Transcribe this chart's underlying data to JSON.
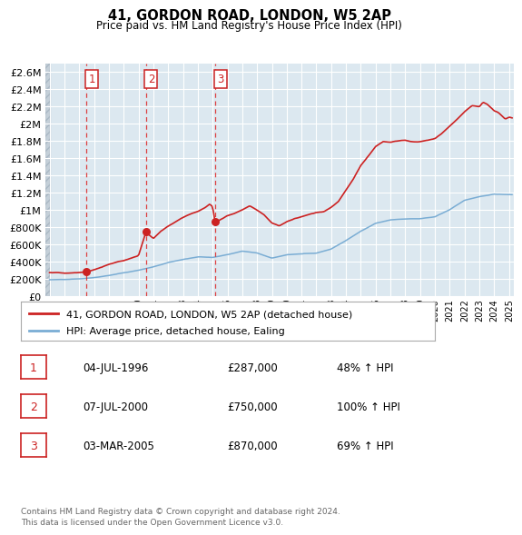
{
  "title": "41, GORDON ROAD, LONDON, W5 2AP",
  "subtitle": "Price paid vs. HM Land Registry's House Price Index (HPI)",
  "legend_house": "41, GORDON ROAD, LONDON, W5 2AP (detached house)",
  "legend_hpi": "HPI: Average price, detached house, Ealing",
  "footer": "Contains HM Land Registry data © Crown copyright and database right 2024.\nThis data is licensed under the Open Government Licence v3.0.",
  "sales": [
    {
      "num": 1,
      "date": "04-JUL-1996",
      "price": "£287,000",
      "pct": "48% ↑ HPI"
    },
    {
      "num": 2,
      "date": "07-JUL-2000",
      "price": "£750,000",
      "pct": "100% ↑ HPI"
    },
    {
      "num": 3,
      "date": "03-MAR-2005",
      "price": "£870,000",
      "pct": "69% ↑ HPI"
    }
  ],
  "sale_years": [
    1996.5,
    2000.5,
    2005.17
  ],
  "sale_prices": [
    287000,
    750000,
    870000
  ],
  "ylim": [
    0,
    2700000
  ],
  "yticks": [
    0,
    200000,
    400000,
    600000,
    800000,
    1000000,
    1200000,
    1400000,
    1600000,
    1800000,
    2000000,
    2200000,
    2400000,
    2600000
  ],
  "xlim_start": 1993.7,
  "xlim_end": 2025.3,
  "xticks": [
    1994,
    1995,
    1996,
    1997,
    1998,
    1999,
    2000,
    2001,
    2002,
    2003,
    2004,
    2005,
    2006,
    2007,
    2008,
    2009,
    2010,
    2011,
    2012,
    2013,
    2014,
    2015,
    2016,
    2017,
    2018,
    2019,
    2020,
    2021,
    2022,
    2023,
    2024,
    2025
  ],
  "hpi_color": "#7aadd4",
  "house_color": "#cc2222",
  "bg_color": "#dce8f0",
  "grid_color": "#ffffff",
  "sale_line_color": "#dd2222",
  "box_color": "#cc2222",
  "fig_bg": "#ffffff",
  "hatch_bg": "#c4cfd8"
}
